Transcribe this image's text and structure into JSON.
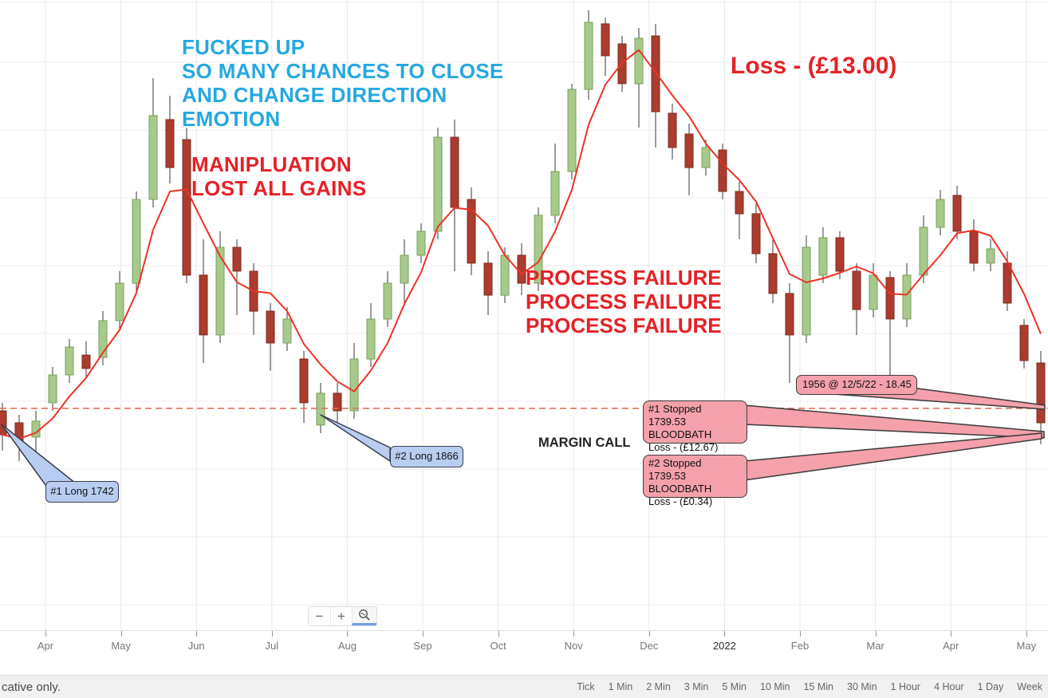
{
  "annotations": {
    "emotion_note": {
      "lines": [
        "FUCKED UP",
        "SO MANY CHANCES TO CLOSE",
        "AND CHANGE DIRECTION",
        "EMOTION"
      ],
      "color": "#25a8e0"
    },
    "manipulation_note": {
      "lines": [
        "MANIPLUATION",
        "LOST ALL GAINS"
      ],
      "color": "#e42126"
    },
    "loss_note": {
      "text": "Loss - (£13.00)",
      "color": "#e42126"
    },
    "process_failure_note": {
      "lines": [
        "PROCESS FAILURE",
        "PROCESS FAILURE",
        "PROCESS FAILURE"
      ],
      "color": "#e42126"
    },
    "margin_call_note": {
      "text": "MARGIN CALL",
      "color": "#222222"
    }
  },
  "callouts": {
    "long1": {
      "text": "#1 Long 1742",
      "fill": "#b9cdf2",
      "border": "#39404d"
    },
    "long2": {
      "text": "#2 Long 1866",
      "fill": "#b9cdf2",
      "border": "#39404d"
    },
    "stopped1": {
      "lines": [
        "#1 Stopped 1739.53",
        "BLOODBATH",
        "Loss - (£12.67)"
      ],
      "fill": "#f4a1ab",
      "border": "#3a3a3a"
    },
    "stopped2": {
      "lines": [
        "#2 Stopped 1739.53",
        "BLOODBATH",
        "Loss - (£0.34)"
      ],
      "fill": "#f4a1ab",
      "border": "#3a3a3a"
    },
    "price_flag": {
      "text": "1956 @ 12/5/22 - 18.45",
      "fill": "#f4a1ab",
      "border": "#3a3a3a"
    }
  },
  "toolbar": {
    "zoom_out_label": "−",
    "zoom_in_label": "+"
  },
  "footer": {
    "disclaimer": "cative only.",
    "timeframes": [
      "Tick",
      "1 Min",
      "2 Min",
      "3 Min",
      "5 Min",
      "10 Min",
      "15 Min",
      "30 Min",
      "1 Hour",
      "4 Hour",
      "1 Day",
      "Week"
    ]
  },
  "chart_data": {
    "type": "candlestick",
    "title": "",
    "x_labels": [
      "Apr",
      "May",
      "Jun",
      "Jul",
      "Aug",
      "Sep",
      "Oct",
      "Nov",
      "Dec",
      "2022",
      "Feb",
      "Mar",
      "Apr",
      "May"
    ],
    "emphasized_label": "2022",
    "ylim": [
      1554.6,
      2080
    ],
    "grid": true,
    "up_color": "#a7c98b",
    "down_color": "#ab3c2e",
    "wick_color": "#3a3a3a",
    "ma_line": {
      "window": 4,
      "color": "#ee3224"
    },
    "stop_line": {
      "price": 1739.53,
      "style": "dashed",
      "color": "#e2705b"
    },
    "candles": {
      "open": [
        1737.5,
        1727.5,
        1715.6,
        1744.2,
        1767.4,
        1784.0,
        1782.0,
        1812.7,
        1843.9,
        1913.7,
        1980.3,
        1963.6,
        1850.6,
        1800.7,
        1873.8,
        1853.9,
        1820.6,
        1794.0,
        1780.7,
        1725.6,
        1752.2,
        1737.5,
        1780.7,
        1814.0,
        1843.9,
        1867.2,
        1887.2,
        1965.6,
        1913.7,
        1860.6,
        1833.9,
        1867.2,
        1843.9,
        1900.5,
        1937.0,
        2005.5,
        2060.1,
        2043.4,
        2010.2,
        2050.1,
        1985.6,
        1968.3,
        1940.3,
        1955.0,
        1920.4,
        1901.8,
        1868.5,
        1835.3,
        1800.7,
        1850.6,
        1881.8,
        1853.9,
        1822.0,
        1848.6,
        1814.0,
        1850.6,
        1890.5,
        1917.1,
        1887.2,
        1860.6,
        1860.6,
        1808.7,
        1777.4
      ],
      "high": [
        1744.2,
        1734.2,
        1737.5,
        1774.1,
        1797.4,
        1795.4,
        1820.6,
        1853.9,
        1920.4,
        2014.8,
        2000.2,
        1973.6,
        1880.5,
        1887.2,
        1880.5,
        1860.6,
        1827.3,
        1824.0,
        1787.4,
        1760.8,
        1760.8,
        1794.0,
        1827.3,
        1853.9,
        1880.5,
        1893.8,
        1973.6,
        1980.3,
        1923.7,
        1870.5,
        1873.8,
        1877.2,
        1907.1,
        1960.3,
        2010.2,
        2071.4,
        2065.4,
        2050.1,
        2056.7,
        2060.1,
        1993.6,
        1976.9,
        1963.6,
        1960.3,
        1928.4,
        1910.4,
        1880.5,
        1843.9,
        1883.8,
        1890.5,
        1887.2,
        1860.6,
        1860.6,
        1853.9,
        1860.6,
        1900.5,
        1921.7,
        1925.1,
        1897.1,
        1880.5,
        1870.5,
        1814.0,
        1787.4
      ],
      "low": [
        1704.3,
        1695.6,
        1700.9,
        1737.5,
        1760.8,
        1766.1,
        1775.4,
        1806.0,
        1837.3,
        1907.1,
        1927.0,
        1843.9,
        1777.4,
        1794.0,
        1817.3,
        1800.7,
        1770.8,
        1787.4,
        1727.5,
        1718.9,
        1724.2,
        1730.9,
        1774.1,
        1807.4,
        1827.3,
        1860.6,
        1880.5,
        1853.9,
        1850.6,
        1817.3,
        1827.3,
        1833.9,
        1837.3,
        1893.8,
        1930.4,
        1996.9,
        2016.8,
        2003.5,
        1973.6,
        1957.0,
        1947.0,
        1917.1,
        1933.7,
        1913.7,
        1880.5,
        1860.6,
        1827.3,
        1760.8,
        1794.0,
        1843.9,
        1847.3,
        1800.7,
        1815.3,
        1767.4,
        1807.4,
        1843.9,
        1883.8,
        1880.5,
        1853.9,
        1853.9,
        1820.6,
        1772.8,
        1709.6
      ],
      "close": [
        1717.6,
        1710.9,
        1728.9,
        1767.4,
        1790.7,
        1772.8,
        1812.7,
        1843.9,
        1913.7,
        1983.6,
        1940.3,
        1850.6,
        1800.7,
        1873.8,
        1853.9,
        1820.6,
        1794.0,
        1814.0,
        1744.2,
        1752.2,
        1737.5,
        1780.7,
        1814.0,
        1843.9,
        1867.2,
        1887.2,
        1965.6,
        1907.1,
        1860.6,
        1833.9,
        1867.2,
        1843.9,
        1900.5,
        1937.0,
        2005.5,
        2061.4,
        2033.5,
        2010.2,
        2048.1,
        1986.9,
        1957.0,
        1940.3,
        1957.0,
        1920.4,
        1901.8,
        1868.5,
        1835.3,
        1800.7,
        1873.8,
        1881.8,
        1853.9,
        1822.0,
        1850.6,
        1814.0,
        1850.6,
        1890.5,
        1913.7,
        1887.2,
        1860.6,
        1872.5,
        1827.3,
        1779.4,
        1727.5
      ]
    }
  }
}
